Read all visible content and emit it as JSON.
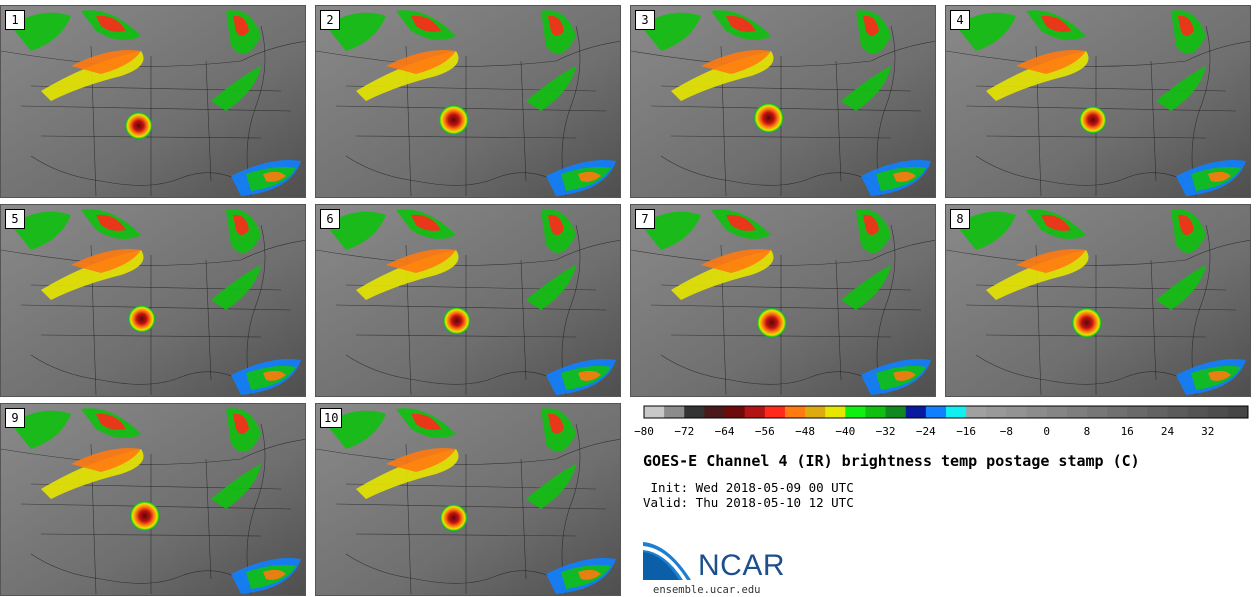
{
  "panels": [
    {
      "label": "1",
      "storms": [
        [
          0.45,
          0.62,
          1.0
        ]
      ]
    },
    {
      "label": "2",
      "storms": [
        [
          0.45,
          0.59,
          1.1
        ]
      ]
    },
    {
      "label": "3",
      "storms": [
        [
          0.45,
          0.58,
          1.1
        ]
      ]
    },
    {
      "label": "4",
      "storms": [
        [
          0.48,
          0.59,
          1.0
        ]
      ]
    },
    {
      "label": "5",
      "storms": [
        [
          0.46,
          0.59,
          1.0
        ]
      ]
    },
    {
      "label": "6",
      "storms": [
        [
          0.46,
          0.6,
          1.0
        ]
      ]
    },
    {
      "label": "7",
      "storms": [
        [
          0.46,
          0.61,
          1.1
        ]
      ]
    },
    {
      "label": "8",
      "storms": [
        [
          0.46,
          0.61,
          1.1
        ]
      ]
    },
    {
      "label": "9",
      "storms": [
        [
          0.47,
          0.58,
          1.1
        ]
      ]
    },
    {
      "label": "10",
      "storms": [
        [
          0.45,
          0.59,
          1.0
        ]
      ]
    }
  ],
  "chart_data": {
    "type": "heatmap",
    "title": "GOES-E Channel 4 (IR) brightness temp postage stamp (C)",
    "init_label": "Init: Wed 2018-05-09 00 UTC",
    "valid_label": "Valid: Thu 2018-05-10 12 UTC",
    "colorbar": {
      "min": -80,
      "max": 40,
      "step": 4,
      "ticks": [
        -80,
        -72,
        -64,
        -56,
        -48,
        -40,
        -32,
        -24,
        -16,
        -8,
        0,
        8,
        16,
        24,
        32
      ],
      "colors": [
        "#c8c8c8",
        "#8c8c8c",
        "#333333",
        "#4a1a1a",
        "#6e0a0a",
        "#b01414",
        "#ff2a1a",
        "#ff7a10",
        "#ddaa10",
        "#e6e600",
        "#10f010",
        "#10c010",
        "#108a20",
        "#0a1aa0",
        "#1080ff",
        "#10f0f0",
        "#a0a0a0",
        "#999999",
        "#939393",
        "#8c8c8c",
        "#858585",
        "#7e7e7e",
        "#777777",
        "#707070",
        "#696969",
        "#626262",
        "#5b5b5b",
        "#545454",
        "#4d4d4d",
        "#464646"
      ]
    }
  },
  "logo": {
    "text": "NCAR",
    "url": "ensemble.ucar.edu"
  }
}
